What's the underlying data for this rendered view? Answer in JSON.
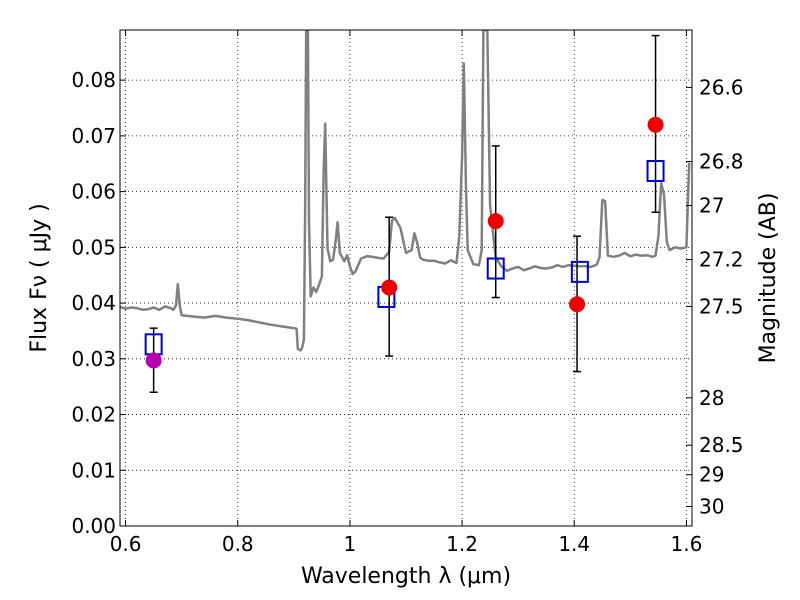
{
  "chart_data": {
    "type": "scatter",
    "title": "",
    "xlabel": "Wavelength  λ (μm)",
    "ylabel": "Flux  Fν ( μJy )",
    "y2label": "Magnitude (AB)",
    "xlim": [
      0.59,
      1.61
    ],
    "ylim": [
      0.0,
      0.089
    ],
    "grid": true,
    "x_ticks": [
      {
        "value": 0.6,
        "label": "0.6"
      },
      {
        "value": 0.8,
        "label": "0.8"
      },
      {
        "value": 1.0,
        "label": "1"
      },
      {
        "value": 1.2,
        "label": "1.2"
      },
      {
        "value": 1.4,
        "label": "1.4"
      },
      {
        "value": 1.6,
        "label": "1.6"
      }
    ],
    "y_ticks": [
      {
        "value": 0.0,
        "label": "0.00"
      },
      {
        "value": 0.01,
        "label": "0.01"
      },
      {
        "value": 0.02,
        "label": "0.02"
      },
      {
        "value": 0.03,
        "label": "0.03"
      },
      {
        "value": 0.04,
        "label": "0.04"
      },
      {
        "value": 0.05,
        "label": "0.05"
      },
      {
        "value": 0.06,
        "label": "0.06"
      },
      {
        "value": 0.07,
        "label": "0.07"
      },
      {
        "value": 0.08,
        "label": "0.08"
      }
    ],
    "y2_ticks": [
      {
        "flux": 0.0787,
        "label": "26.6"
      },
      {
        "flux": 0.0654,
        "label": "26.8"
      },
      {
        "flux": 0.0575,
        "label": "27"
      },
      {
        "flux": 0.0478,
        "label": "27.2"
      },
      {
        "flux": 0.0394,
        "label": "27.5"
      },
      {
        "flux": 0.023,
        "label": "28"
      },
      {
        "flux": 0.0145,
        "label": "28.5"
      },
      {
        "flux": 0.0092,
        "label": "29"
      },
      {
        "flux": 0.0035,
        "label": "30"
      }
    ],
    "series": [
      {
        "kind": "line",
        "color": "#808080",
        "points": [
          [
            0.59,
            0.0393
          ],
          [
            0.6,
            0.039
          ],
          [
            0.61,
            0.0392
          ],
          [
            0.62,
            0.0391
          ],
          [
            0.63,
            0.0388
          ],
          [
            0.64,
            0.0389
          ],
          [
            0.65,
            0.0392
          ],
          [
            0.66,
            0.0388
          ],
          [
            0.67,
            0.0394
          ],
          [
            0.68,
            0.0391
          ],
          [
            0.685,
            0.0388
          ],
          [
            0.69,
            0.0396
          ],
          [
            0.693,
            0.0434
          ],
          [
            0.697,
            0.0393
          ],
          [
            0.7,
            0.0378
          ],
          [
            0.72,
            0.0376
          ],
          [
            0.74,
            0.0374
          ],
          [
            0.76,
            0.0377
          ],
          [
            0.78,
            0.0374
          ],
          [
            0.8,
            0.0372
          ],
          [
            0.82,
            0.0369
          ],
          [
            0.84,
            0.0365
          ],
          [
            0.86,
            0.0361
          ],
          [
            0.88,
            0.0358
          ],
          [
            0.9,
            0.0355
          ],
          [
            0.905,
            0.0354
          ],
          [
            0.907,
            0.0318
          ],
          [
            0.912,
            0.0315
          ],
          [
            0.915,
            0.0321
          ],
          [
            0.918,
            0.0335
          ],
          [
            0.92,
            0.0555
          ],
          [
            0.922,
            0.089
          ],
          [
            0.925,
            0.089
          ],
          [
            0.927,
            0.0545
          ],
          [
            0.93,
            0.0412
          ],
          [
            0.935,
            0.0428
          ],
          [
            0.94,
            0.042
          ],
          [
            0.945,
            0.0433
          ],
          [
            0.95,
            0.0448
          ],
          [
            0.953,
            0.0635
          ],
          [
            0.956,
            0.0722
          ],
          [
            0.96,
            0.0498
          ],
          [
            0.965,
            0.0475
          ],
          [
            0.97,
            0.0478
          ],
          [
            0.975,
            0.0515
          ],
          [
            0.978,
            0.0545
          ],
          [
            0.982,
            0.049
          ],
          [
            0.99,
            0.0475
          ],
          [
            0.995,
            0.0486
          ],
          [
            1.0,
            0.0466
          ],
          [
            1.005,
            0.0452
          ],
          [
            1.01,
            0.0457
          ],
          [
            1.02,
            0.048
          ],
          [
            1.03,
            0.0484
          ],
          [
            1.04,
            0.0483
          ],
          [
            1.05,
            0.0481
          ],
          [
            1.06,
            0.048
          ],
          [
            1.07,
            0.0492
          ],
          [
            1.075,
            0.0548
          ],
          [
            1.08,
            0.0553
          ],
          [
            1.09,
            0.0535
          ],
          [
            1.1,
            0.049
          ],
          [
            1.11,
            0.0495
          ],
          [
            1.115,
            0.0525
          ],
          [
            1.12,
            0.0508
          ],
          [
            1.125,
            0.0482
          ],
          [
            1.13,
            0.0478
          ],
          [
            1.14,
            0.0476
          ],
          [
            1.15,
            0.0476
          ],
          [
            1.16,
            0.0473
          ],
          [
            1.17,
            0.0471
          ],
          [
            1.18,
            0.0477
          ],
          [
            1.19,
            0.0472
          ],
          [
            1.195,
            0.052
          ],
          [
            1.2,
            0.0665
          ],
          [
            1.203,
            0.083
          ],
          [
            1.207,
            0.0605
          ],
          [
            1.21,
            0.0495
          ],
          [
            1.22,
            0.047
          ],
          [
            1.23,
            0.0468
          ],
          [
            1.235,
            0.0495
          ],
          [
            1.238,
            0.089
          ],
          [
            1.245,
            0.089
          ],
          [
            1.25,
            0.0575
          ],
          [
            1.26,
            0.0482
          ],
          [
            1.27,
            0.0466
          ],
          [
            1.28,
            0.0458
          ],
          [
            1.29,
            0.0462
          ],
          [
            1.3,
            0.0465
          ],
          [
            1.31,
            0.0459
          ],
          [
            1.32,
            0.0462
          ],
          [
            1.33,
            0.0466
          ],
          [
            1.34,
            0.0463
          ],
          [
            1.35,
            0.0462
          ],
          [
            1.36,
            0.0464
          ],
          [
            1.37,
            0.0468
          ],
          [
            1.38,
            0.0465
          ],
          [
            1.39,
            0.0468
          ],
          [
            1.4,
            0.0467
          ],
          [
            1.41,
            0.0466
          ],
          [
            1.42,
            0.0466
          ],
          [
            1.43,
            0.0465
          ],
          [
            1.44,
            0.0469
          ],
          [
            1.445,
            0.0482
          ],
          [
            1.45,
            0.0585
          ],
          [
            1.455,
            0.0583
          ],
          [
            1.46,
            0.0485
          ],
          [
            1.47,
            0.0483
          ],
          [
            1.48,
            0.0485
          ],
          [
            1.49,
            0.049
          ],
          [
            1.5,
            0.0484
          ],
          [
            1.51,
            0.0487
          ],
          [
            1.52,
            0.0485
          ],
          [
            1.53,
            0.0486
          ],
          [
            1.54,
            0.0483
          ],
          [
            1.545,
            0.0485
          ],
          [
            1.55,
            0.052
          ],
          [
            1.555,
            0.0615
          ],
          [
            1.56,
            0.0595
          ],
          [
            1.565,
            0.051
          ],
          [
            1.57,
            0.0495
          ],
          [
            1.58,
            0.05
          ],
          [
            1.59,
            0.0498
          ],
          [
            1.6,
            0.05
          ],
          [
            1.605,
            0.0652
          ]
        ]
      },
      {
        "kind": "points",
        "marker": "filled-circle",
        "points": [
          {
            "x": 0.65,
            "y": 0.0297,
            "color": "#b300b3",
            "err": [
              0.024,
              0.0355
            ]
          },
          {
            "x": 1.07,
            "y": 0.0428,
            "color": "#ee0000",
            "err": [
              0.0305,
              0.0554
            ]
          },
          {
            "x": 1.26,
            "y": 0.0547,
            "color": "#ee0000",
            "err": [
              0.041,
              0.0682
            ]
          },
          {
            "x": 1.405,
            "y": 0.0398,
            "color": "#ee0000",
            "err": [
              0.0277,
              0.052
            ]
          },
          {
            "x": 1.545,
            "y": 0.072,
            "color": "#ee0000",
            "err": [
              0.0563,
              0.088
            ]
          }
        ]
      },
      {
        "kind": "points",
        "marker": "open-square",
        "color": "#0000cc",
        "points": [
          {
            "x": 0.65,
            "y": 0.0326
          },
          {
            "x": 1.065,
            "y": 0.0411
          },
          {
            "x": 1.26,
            "y": 0.0462
          },
          {
            "x": 1.41,
            "y": 0.0456
          },
          {
            "x": 1.545,
            "y": 0.0637
          }
        ]
      }
    ]
  }
}
